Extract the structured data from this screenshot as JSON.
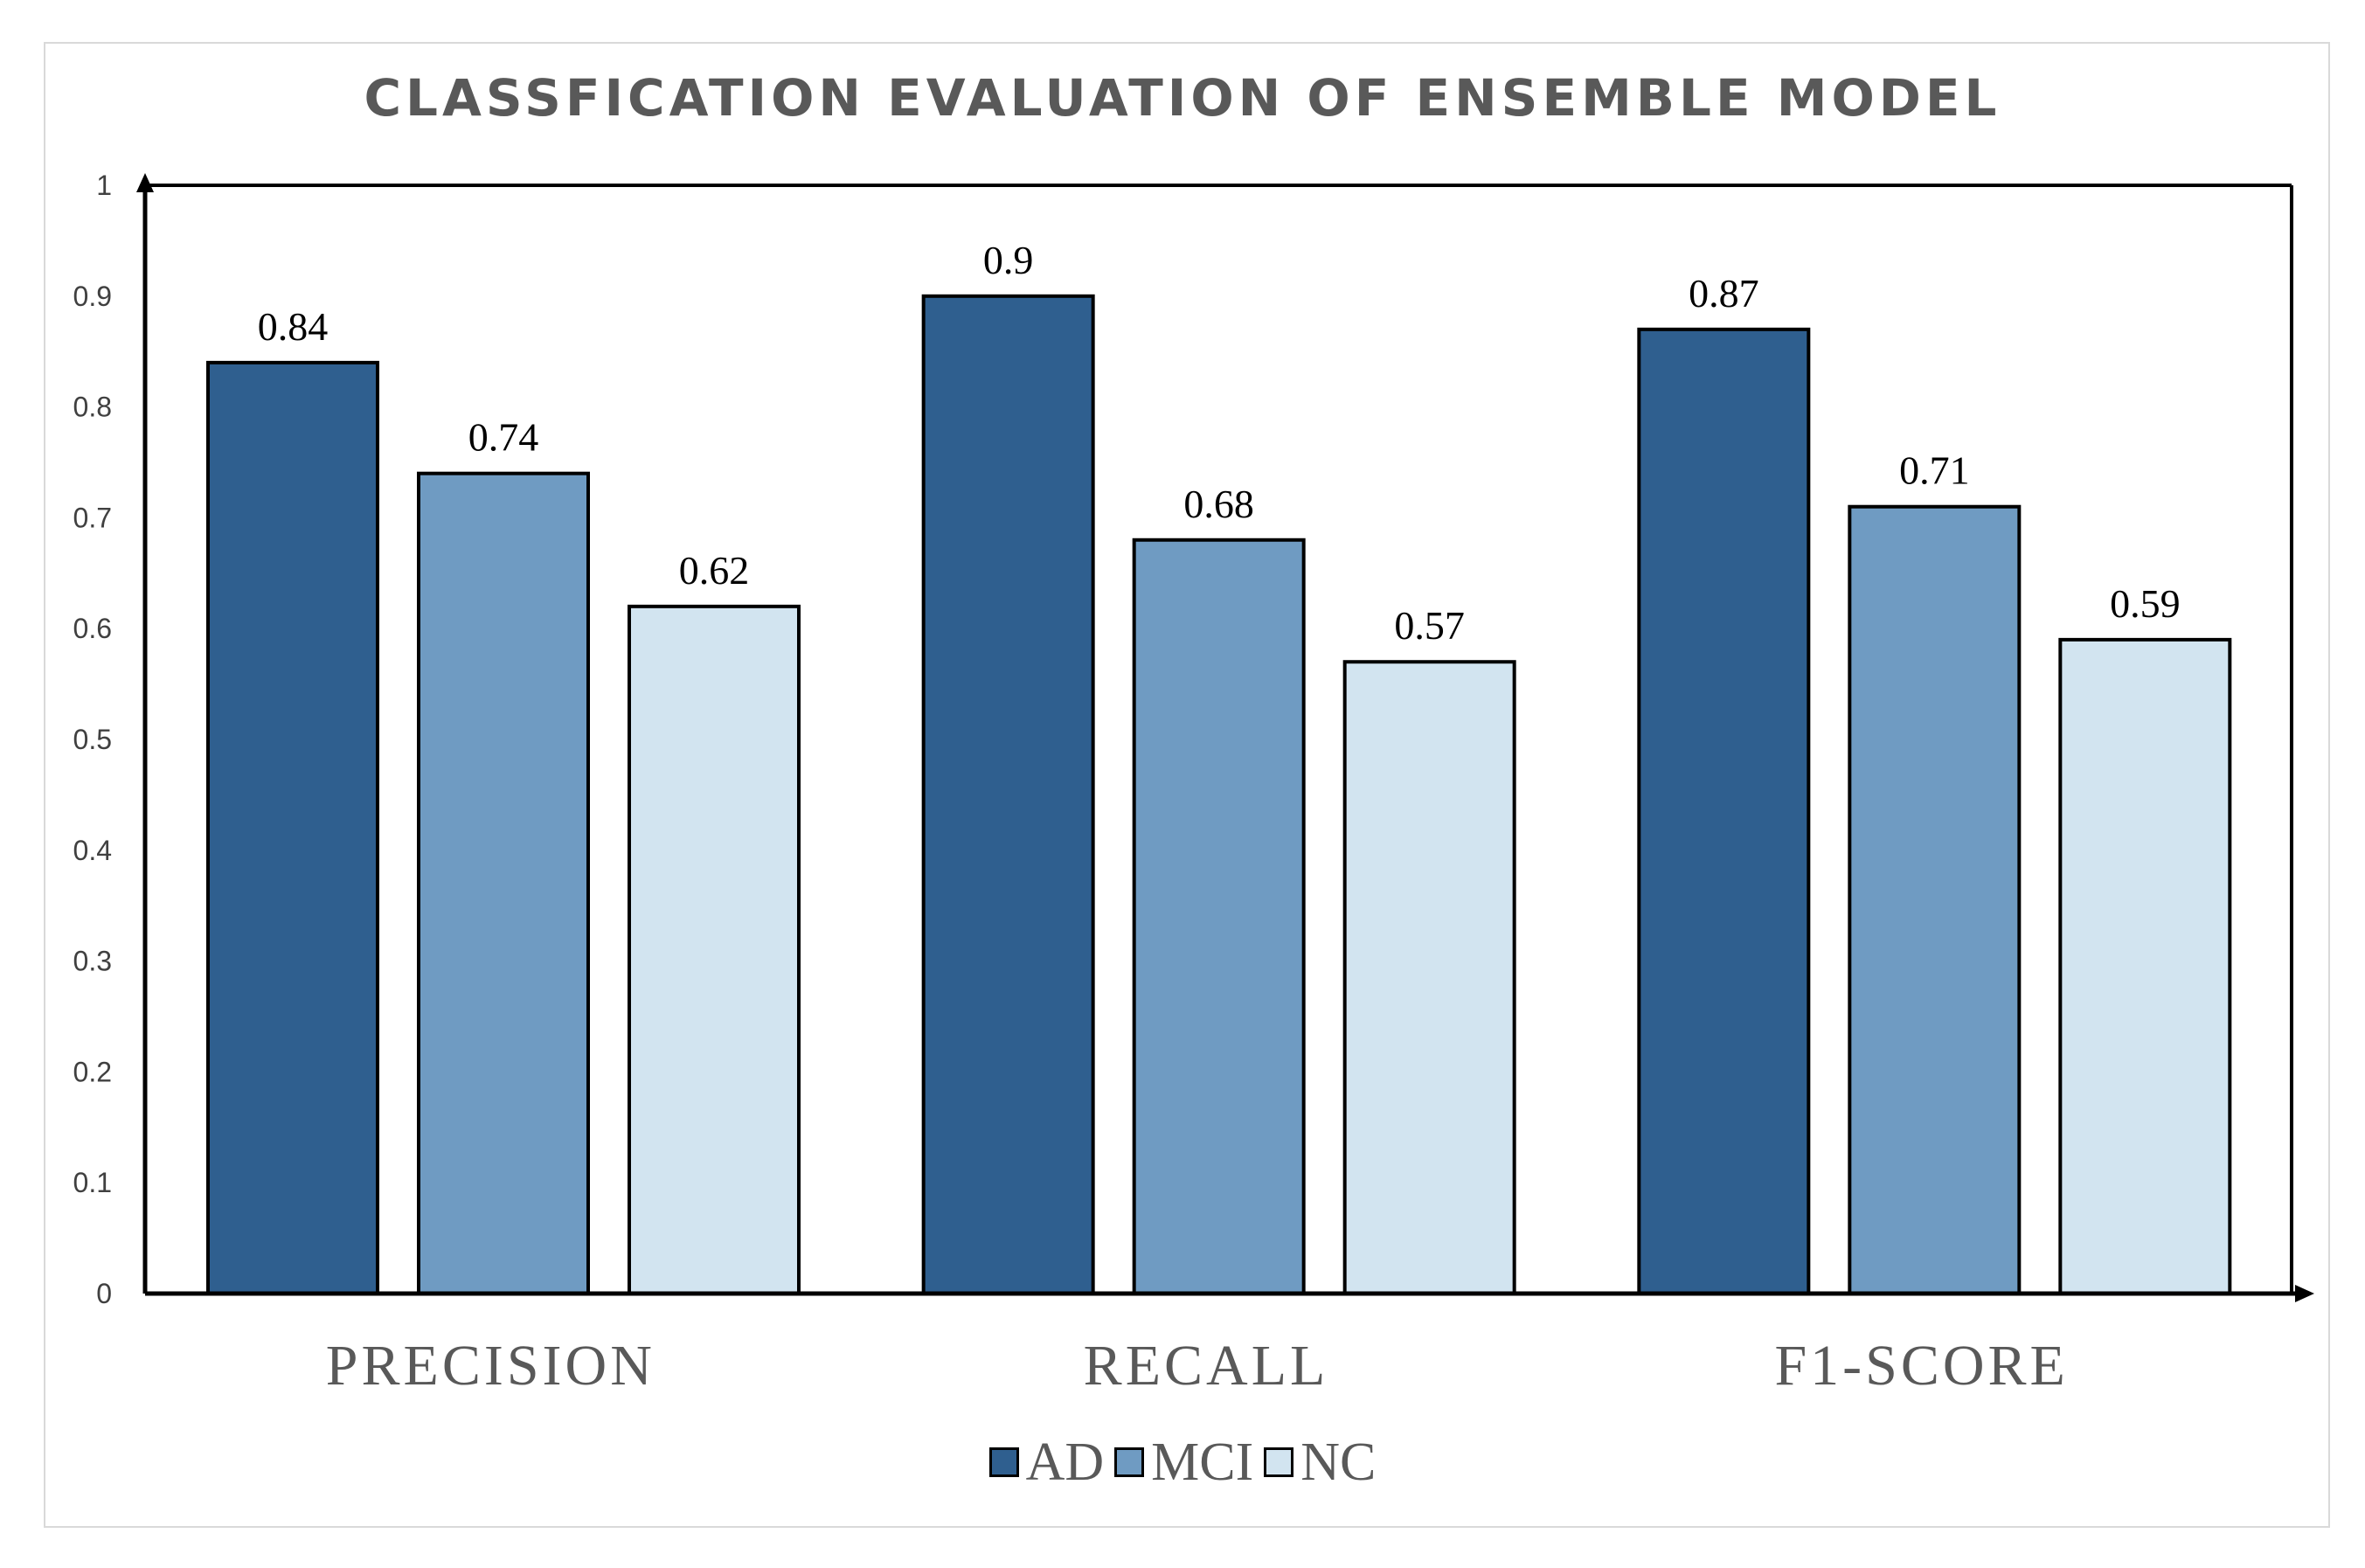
{
  "chart_data": {
    "type": "bar",
    "title": "CLASSFICATION EVALUATION OF ENSEMBLE MODEL",
    "categories": [
      "PRECISION",
      "RECALL",
      "F1-SCORE"
    ],
    "series": [
      {
        "name": "AD",
        "values": [
          0.84,
          0.9,
          0.87
        ],
        "color": "#2f5f8f"
      },
      {
        "name": "MCI",
        "values": [
          0.74,
          0.68,
          0.71
        ],
        "color": "#6f9bc2"
      },
      {
        "name": "NC",
        "values": [
          0.62,
          0.57,
          0.59
        ],
        "color": "#d2e4f0"
      }
    ],
    "ylim": [
      0,
      1
    ],
    "yticks": [
      "0",
      "0.1",
      "0.2",
      "0.3",
      "0.4",
      "0.5",
      "0.6",
      "0.7",
      "0.8",
      "0.9",
      "1"
    ],
    "data_labels": true,
    "grid": false,
    "legend_position": "bottom"
  }
}
